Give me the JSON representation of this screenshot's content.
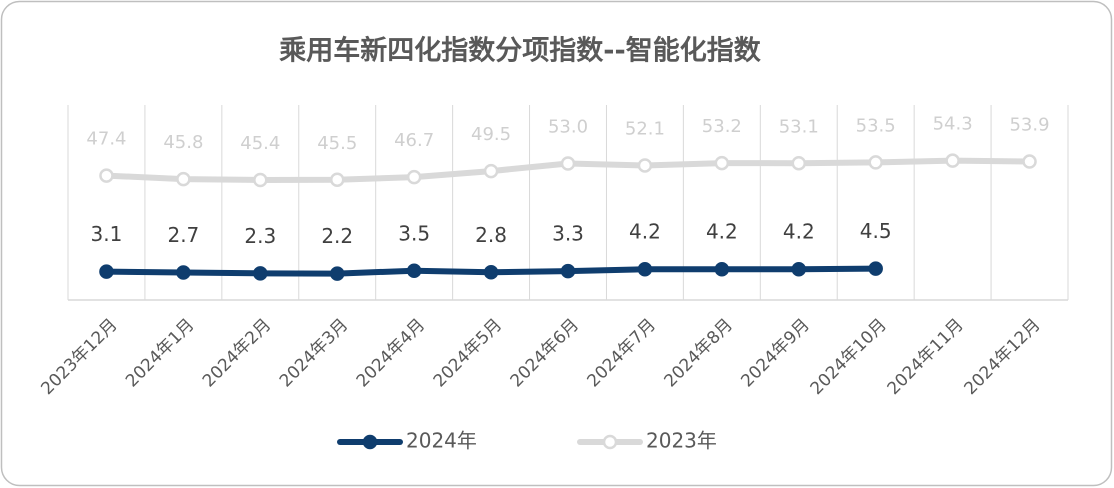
{
  "chart_data": {
    "type": "line",
    "title": "乘用车新四化指数分项指数--智能化指数",
    "categories": [
      "2023年12月",
      "2024年1月",
      "2024年2月",
      "2024年3月",
      "2024年4月",
      "2024年5月",
      "2024年6月",
      "2024年7月",
      "2024年8月",
      "2024年9月",
      "2024年10月",
      "2024年11月",
      "2024年12月"
    ],
    "series": [
      {
        "name": "2024年",
        "color": "#0f3d6e",
        "values": [
          3.1,
          2.7,
          2.3,
          2.2,
          3.5,
          2.8,
          3.3,
          4.2,
          4.2,
          4.2,
          4.5,
          null,
          null
        ]
      },
      {
        "name": "2023年",
        "color": "#d9d9d9",
        "values": [
          47.4,
          45.8,
          45.4,
          45.5,
          46.7,
          49.5,
          53.0,
          52.1,
          53.2,
          53.1,
          53.5,
          54.3,
          53.9
        ],
        "value_labels": [
          "47.4",
          "45.8",
          "45.4",
          "45.5",
          "46.7",
          "49.5",
          "53.0",
          "52.1",
          "53.2",
          "53.1",
          "53.5",
          "54.3",
          "53.9"
        ]
      }
    ],
    "ylim": [
      -10,
      80
    ],
    "grid": true,
    "legend": "bottom"
  }
}
